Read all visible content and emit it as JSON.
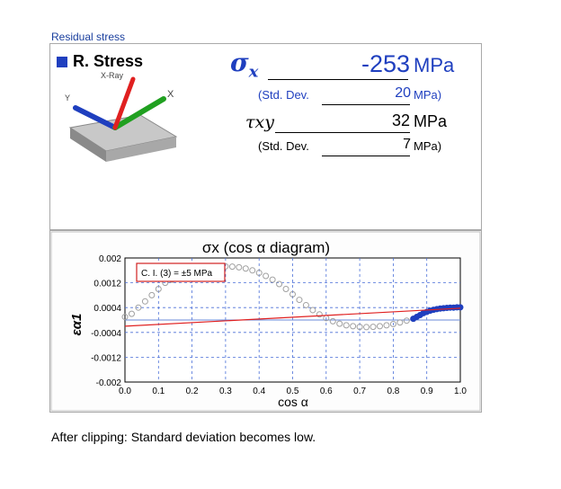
{
  "section_title": "Residual stress",
  "result": {
    "title": "R. Stress",
    "xray_label": "X-Ray",
    "axis_y": "Y",
    "axis_x": "X",
    "sigma_symbol": "σ",
    "sigma_sub": "x",
    "sigma_value": "-253",
    "sigma_unit": "MPa",
    "std_label_1": "(Std. Dev.",
    "std_value_1": "20",
    "std_unit_1": "MPa)",
    "tau_symbol": "τxy",
    "tau_value": "32",
    "tau_unit": "MPa",
    "std_label_2": "(Std. Dev.",
    "std_value_2": "7",
    "std_unit_2": "MPa)"
  },
  "chart_data": {
    "type": "scatter",
    "title": "σx (cos α diagram)",
    "xlabel": "cos α",
    "ylabel": "εα1",
    "xlim": [
      0.0,
      1.0
    ],
    "ylim": [
      -0.002,
      0.002
    ],
    "xticks": [
      "0.0",
      "0.1",
      "0.2",
      "0.3",
      "0.4",
      "0.5",
      "0.6",
      "0.7",
      "0.8",
      "0.9",
      "1.0"
    ],
    "yticks": [
      "0.002",
      "0.0012",
      "0.0004",
      "-0.0004",
      "-0.0012",
      "-0.002"
    ],
    "annotation": "C. I. (3) = ±5 MPa",
    "grid": true,
    "series": [
      {
        "color": "#a0a0a0",
        "style": "hollow-circle",
        "x": [
          0.0,
          0.02,
          0.04,
          0.06,
          0.08,
          0.1,
          0.12,
          0.14,
          0.16,
          0.18,
          0.2,
          0.22,
          0.24,
          0.26,
          0.28,
          0.3,
          0.32,
          0.34,
          0.36,
          0.38,
          0.4,
          0.42,
          0.44,
          0.46,
          0.48,
          0.5,
          0.52,
          0.54,
          0.56,
          0.58,
          0.6,
          0.62,
          0.64,
          0.66,
          0.68,
          0.7,
          0.72,
          0.74,
          0.76,
          0.78,
          0.8,
          0.82,
          0.84,
          0.86
        ],
        "y": [
          0.0001,
          0.0002,
          0.0004,
          0.0006,
          0.0008,
          0.001,
          0.0012,
          0.0013,
          0.0014,
          0.0015,
          0.0016,
          0.00165,
          0.0017,
          0.00172,
          0.00173,
          0.00173,
          0.00172,
          0.0017,
          0.00166,
          0.0016,
          0.00152,
          0.00142,
          0.0013,
          0.00116,
          0.001,
          0.00083,
          0.00065,
          0.00048,
          0.00032,
          0.00018,
          6e-05,
          -4e-05,
          -0.00012,
          -0.00017,
          -0.0002,
          -0.00022,
          -0.00023,
          -0.00022,
          -0.0002,
          -0.00017,
          -0.00013,
          -8e-05,
          -2e-05,
          4e-05
        ]
      },
      {
        "color": "#1f3fbf",
        "style": "filled-circle",
        "x": [
          0.86,
          0.87,
          0.88,
          0.89,
          0.9,
          0.91,
          0.92,
          0.93,
          0.94,
          0.95,
          0.96,
          0.97,
          0.98,
          0.99,
          1.0
        ],
        "y": [
          4e-05,
          0.0001,
          0.00016,
          0.00022,
          0.00026,
          0.0003,
          0.00033,
          0.00035,
          0.00037,
          0.00038,
          0.00039,
          0.0004,
          0.0004,
          0.00041,
          0.00041
        ]
      },
      {
        "color": "#e02020",
        "style": "line",
        "x": [
          0.0,
          1.0
        ],
        "y": [
          -0.0002,
          0.00038
        ]
      }
    ]
  },
  "caption": "After clipping: Standard deviation becomes low."
}
